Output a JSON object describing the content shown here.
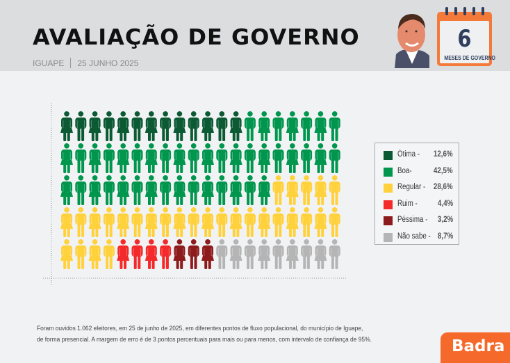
{
  "header": {
    "title": "AVALIAÇÃO DE GOVERNO",
    "city": "IGUAPE",
    "date": "25 JUNHO 2025"
  },
  "calendar": {
    "number": "6",
    "label": "MESES DE GOVERNO"
  },
  "chart_data": {
    "type": "pictogram",
    "title": "AVALIAÇÃO DE GOVERNO",
    "grid": {
      "columns": 20,
      "rows": 5,
      "total_icons": 100
    },
    "legend_position": "right",
    "categories": [
      "Ótima",
      "Boa",
      "Regular",
      "Ruim",
      "Péssima",
      "Não sabe"
    ],
    "legend_labels": [
      "Ótima -",
      "Boa-",
      "Regular -",
      "Ruim -",
      "Péssima -",
      "Não sabe -"
    ],
    "values": [
      12.6,
      42.5,
      28.6,
      4.4,
      3.2,
      8.7
    ],
    "value_labels": [
      "12,6%",
      "42,5%",
      "28,6%",
      "4,4%",
      "3,2%",
      "8,7%"
    ],
    "icon_counts": [
      13,
      42,
      29,
      4,
      3,
      9
    ],
    "colors": [
      "#0b5a33",
      "#00964e",
      "#ffd13d",
      "#f42a2a",
      "#8e1b1b",
      "#b5b5b5"
    ]
  },
  "footer": {
    "line1": "Foram ouvidos 1.062 eleitores, em 25 de junho de 2025, em diferentes pontos de fluxo populacional, do município de Iguape,",
    "line2": "de forma presencial. A margem de erro é de 3 pontos percentuais para mais ou para menos, com intervalo de confiança de 95%."
  },
  "brand": {
    "name": "Badra",
    "color": "#f56a2a"
  }
}
